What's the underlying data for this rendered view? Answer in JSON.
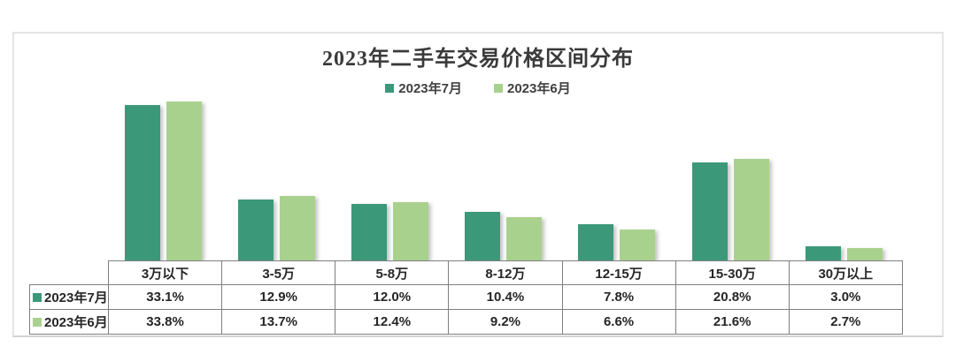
{
  "chart_data": {
    "type": "bar",
    "title": "2023年二手车交易价格区间分布",
    "categories": [
      "3万以下",
      "3-5万",
      "5-8万",
      "8-12万",
      "12-15万",
      "15-30万",
      "30万以上"
    ],
    "series": [
      {
        "name": "2023年7月",
        "color": "#3b9878",
        "values": [
          33.1,
          12.9,
          12.0,
          10.4,
          7.8,
          20.8,
          3.0
        ]
      },
      {
        "name": "2023年6月",
        "color": "#a9d18e",
        "values": [
          33.8,
          13.7,
          12.4,
          9.2,
          6.6,
          21.6,
          2.7
        ]
      }
    ],
    "value_format": "percent_one_decimal",
    "legend_position": "top",
    "grid": false,
    "data_table": true,
    "ylim": [
      0,
      39.7
    ]
  },
  "style": {
    "bar_shadow": true,
    "table_border_color": "#7f7f7f",
    "card_border_color": "#e4e4e4",
    "text_color": "#262626"
  }
}
